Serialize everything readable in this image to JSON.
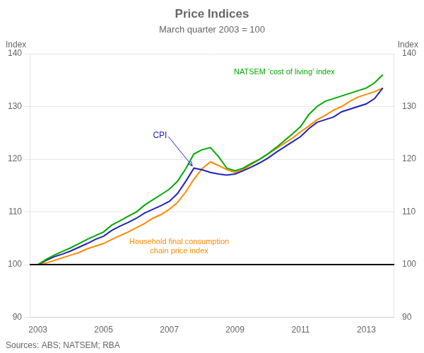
{
  "chart_data": {
    "type": "line",
    "title": "Price Indices",
    "subtitle": "March quarter 2003 = 100",
    "ylabel": "Index",
    "y2label": "Index",
    "source": "Sources: ABS; NATSEM; RBA",
    "xlim": [
      2002.75,
      2013.85
    ],
    "xticks": [
      2003,
      2005,
      2007,
      2009,
      2011,
      2013
    ],
    "ylim": [
      90,
      140
    ],
    "yticks": [
      90,
      100,
      110,
      120,
      130,
      140
    ],
    "y2lim": [
      90,
      140
    ],
    "y2ticks": [
      90,
      100,
      110,
      120,
      130,
      140
    ],
    "grid": true,
    "baseline": 100,
    "series": [
      {
        "name": "Household final consumption\nchain price index",
        "color": "#ff8800",
        "x": [
          2003.0,
          2003.25,
          2003.5,
          2003.75,
          2004.0,
          2004.25,
          2004.5,
          2004.75,
          2005.0,
          2005.25,
          2005.5,
          2005.75,
          2006.0,
          2006.25,
          2006.5,
          2006.75,
          2007.0,
          2007.25,
          2007.5,
          2007.75,
          2008.0,
          2008.25,
          2008.5,
          2008.75,
          2009.0,
          2009.25,
          2009.5,
          2009.75,
          2010.0,
          2010.25,
          2010.5,
          2010.75,
          2011.0,
          2011.25,
          2011.5,
          2011.75,
          2012.0,
          2012.25,
          2012.5,
          2012.75,
          2013.0,
          2013.25,
          2013.5
        ],
        "values": [
          100.0,
          100.3,
          100.8,
          101.3,
          101.8,
          102.3,
          103.0,
          103.5,
          104.0,
          104.8,
          105.5,
          106.2,
          107.0,
          107.8,
          108.8,
          109.5,
          110.5,
          111.8,
          113.8,
          116.2,
          118.2,
          119.5,
          118.8,
          118.0,
          117.5,
          118.0,
          119.0,
          120.0,
          121.0,
          122.0,
          123.0,
          124.0,
          125.2,
          126.3,
          127.5,
          128.3,
          129.3,
          130.0,
          131.0,
          131.8,
          132.3,
          132.8,
          133.5
        ]
      },
      {
        "name": "CPI",
        "color": "#2222bb",
        "x": [
          2003.0,
          2003.25,
          2003.5,
          2003.75,
          2004.0,
          2004.25,
          2004.5,
          2004.75,
          2005.0,
          2005.25,
          2005.5,
          2005.75,
          2006.0,
          2006.25,
          2006.5,
          2006.75,
          2007.0,
          2007.25,
          2007.5,
          2007.75,
          2008.0,
          2008.25,
          2008.5,
          2008.75,
          2009.0,
          2009.25,
          2009.5,
          2009.75,
          2010.0,
          2010.25,
          2010.5,
          2010.75,
          2011.0,
          2011.25,
          2011.5,
          2011.75,
          2012.0,
          2012.25,
          2012.5,
          2012.75,
          2013.0,
          2013.25,
          2013.5
        ],
        "values": [
          100.0,
          100.8,
          101.5,
          102.0,
          102.6,
          103.3,
          104.0,
          104.8,
          105.4,
          106.5,
          107.3,
          108.0,
          108.8,
          109.8,
          110.5,
          111.2,
          112.0,
          113.5,
          115.8,
          118.3,
          118.0,
          117.5,
          117.2,
          117.0,
          117.2,
          117.8,
          118.5,
          119.3,
          120.2,
          121.3,
          122.3,
          123.3,
          124.3,
          125.8,
          127.0,
          127.5,
          128.0,
          129.0,
          129.5,
          130.0,
          130.5,
          131.5,
          133.5
        ]
      },
      {
        "name": "NATSEM ‘cost of living’ index",
        "color": "#00aa00",
        "x": [
          2003.0,
          2003.25,
          2003.5,
          2003.75,
          2004.0,
          2004.25,
          2004.5,
          2004.75,
          2005.0,
          2005.25,
          2005.5,
          2005.75,
          2006.0,
          2006.25,
          2006.5,
          2006.75,
          2007.0,
          2007.25,
          2007.5,
          2007.75,
          2008.0,
          2008.25,
          2008.5,
          2008.75,
          2009.0,
          2009.25,
          2009.5,
          2009.75,
          2010.0,
          2010.25,
          2010.5,
          2010.75,
          2011.0,
          2011.25,
          2011.5,
          2011.75,
          2012.0,
          2012.25,
          2012.5,
          2012.75,
          2013.0,
          2013.25,
          2013.5
        ],
        "values": [
          100.0,
          101.0,
          101.8,
          102.5,
          103.2,
          104.0,
          104.8,
          105.5,
          106.2,
          107.5,
          108.3,
          109.2,
          110.0,
          111.3,
          112.3,
          113.3,
          114.3,
          115.8,
          118.2,
          121.0,
          121.8,
          122.2,
          120.5,
          118.3,
          117.8,
          118.3,
          119.2,
          120.0,
          121.0,
          122.2,
          123.5,
          124.8,
          126.2,
          128.5,
          130.0,
          131.0,
          131.5,
          132.0,
          132.5,
          133.0,
          133.5,
          134.5,
          136.0
        ]
      }
    ]
  }
}
